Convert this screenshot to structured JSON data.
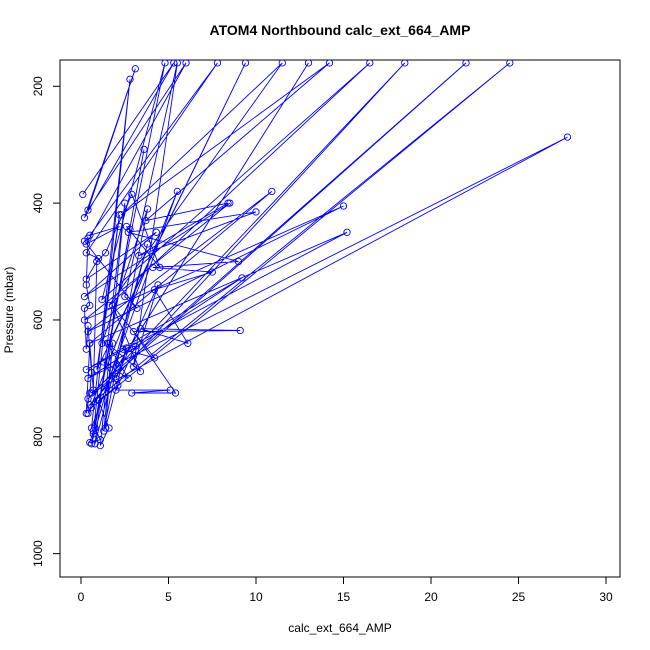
{
  "chart_data": {
    "type": "scatter",
    "title": "ATOM4 Northbound calc_ext_664_AMP",
    "xlabel": "calc_ext_664_AMP",
    "ylabel": "Pressure (mbar)",
    "xlim": [
      -1.2,
      30.8
    ],
    "ylim": [
      1040,
      155
    ],
    "y_reversed": true,
    "x_ticks": [
      0,
      5,
      10,
      15,
      20,
      25,
      30
    ],
    "y_ticks": [
      200,
      400,
      600,
      800,
      1000
    ],
    "grid": false,
    "series_color": "#0000ff",
    "series": [
      {
        "points": [
          [
            0.1,
            385
          ],
          [
            5.3,
            160
          ],
          [
            0.2,
            425
          ],
          [
            3.1,
            170
          ],
          [
            0.4,
            412
          ],
          [
            6.0,
            160
          ],
          [
            0.3,
            470
          ],
          [
            2.2,
            440
          ],
          [
            0.5,
            455
          ],
          [
            7.8,
            160
          ],
          [
            0.3,
            485
          ],
          [
            1.0,
            495
          ],
          [
            0.3,
            530
          ],
          [
            4.3,
            450
          ],
          [
            0.2,
            560
          ],
          [
            8.5,
            400
          ],
          [
            0.2,
            600
          ],
          [
            15.0,
            405
          ],
          [
            0.4,
            620
          ],
          [
            10.9,
            380
          ],
          [
            0.5,
            640
          ],
          [
            15.2,
            450
          ],
          [
            0.3,
            685
          ],
          [
            9.2,
            528
          ],
          [
            0.4,
            700
          ],
          [
            27.8,
            287
          ],
          [
            0.6,
            725
          ],
          [
            22.0,
            160
          ],
          [
            0.4,
            735
          ],
          [
            18.5,
            160
          ],
          [
            0.5,
            745
          ],
          [
            24.5,
            160
          ],
          [
            0.6,
            750
          ],
          [
            13.0,
            160
          ],
          [
            0.4,
            760
          ],
          [
            5.5,
            380
          ],
          [
            0.6,
            785
          ],
          [
            2.8,
            188
          ],
          [
            0.7,
            795
          ],
          [
            3.6,
            308
          ],
          [
            0.6,
            812
          ],
          [
            3.8,
            470
          ],
          [
            0.8,
            812
          ],
          [
            2.5,
            400
          ],
          [
            1.1,
            815
          ],
          [
            1.6,
            785
          ],
          [
            1.0,
            738
          ],
          [
            2.1,
            712
          ],
          [
            1.3,
            672
          ],
          [
            2.7,
            700
          ],
          [
            1.5,
            640
          ],
          [
            3.4,
            688
          ],
          [
            1.8,
            575
          ],
          [
            4.2,
            665
          ],
          [
            2.4,
            650
          ],
          [
            3.1,
            645
          ],
          [
            2.0,
            720
          ],
          [
            5.1,
            720
          ],
          [
            2.9,
            725
          ],
          [
            5.4,
            725
          ],
          [
            3.0,
            620
          ],
          [
            9.1,
            618
          ],
          [
            3.4,
            615
          ],
          [
            6.1,
            640
          ],
          [
            4.2,
            548
          ],
          [
            7.5,
            518
          ],
          [
            4.1,
            510
          ],
          [
            9.0,
            500
          ],
          [
            2.7,
            450
          ],
          [
            10.0,
            415
          ],
          [
            3.3,
            490
          ],
          [
            8.4,
            400
          ],
          [
            3.7,
            430
          ],
          [
            14.2,
            160
          ],
          [
            2.3,
            420
          ],
          [
            11.5,
            160
          ],
          [
            1.6,
            575
          ],
          [
            16.5,
            160
          ],
          [
            1.2,
            565
          ],
          [
            4.8,
            160
          ],
          [
            1.6,
            640
          ],
          [
            9.4,
            160
          ],
          [
            0.9,
            685
          ],
          [
            2.2,
            420
          ],
          [
            1.2,
            640
          ],
          [
            3.8,
            410
          ],
          [
            1.3,
            790
          ],
          [
            1.8,
            640
          ],
          [
            1.4,
            785
          ],
          [
            2.6,
            648
          ],
          [
            2.0,
            700
          ],
          [
            4.4,
            540
          ],
          [
            3.0,
            680
          ],
          [
            5.5,
            160
          ],
          [
            2.5,
            560
          ],
          [
            3.2,
            580
          ],
          [
            0.2,
            465
          ],
          [
            0.4,
            460
          ],
          [
            0.3,
            540
          ],
          [
            0.5,
            575
          ],
          [
            0.2,
            580
          ],
          [
            0.3,
            650
          ],
          [
            0.4,
            610
          ],
          [
            0.6,
            690
          ],
          [
            0.5,
            725
          ],
          [
            0.3,
            760
          ],
          [
            0.5,
            640
          ],
          [
            0.7,
            720
          ],
          [
            0.9,
            500
          ],
          [
            1.4,
            485
          ],
          [
            2.9,
            385
          ],
          [
            4.5,
            510
          ],
          [
            2.6,
            440
          ],
          [
            2.8,
            445
          ],
          [
            0.8,
            785
          ],
          [
            1.1,
            805
          ],
          [
            0.5,
            810
          ],
          [
            0.7,
            790
          ]
        ]
      }
    ]
  }
}
